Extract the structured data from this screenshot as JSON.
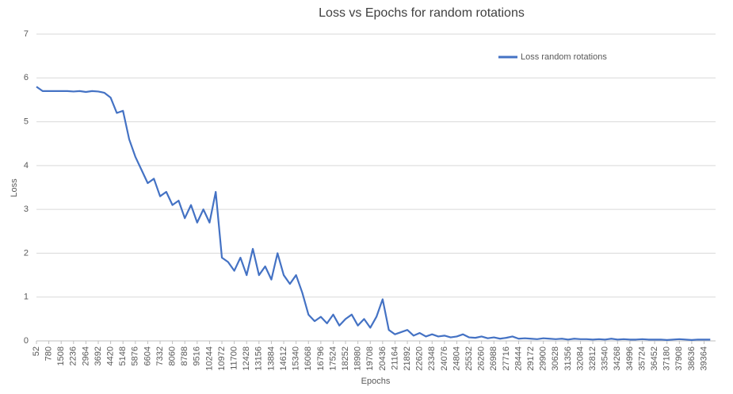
{
  "chart_data": {
    "type": "line",
    "title": "Loss vs Epochs for random rotations",
    "x_label": "Epochs",
    "y_label": "Loss",
    "x": [
      52,
      416,
      780,
      1144,
      1508,
      1872,
      2236,
      2600,
      2964,
      3328,
      3692,
      4056,
      4420,
      4784,
      5148,
      5512,
      5876,
      6240,
      6604,
      6968,
      7332,
      7696,
      8060,
      8424,
      8788,
      9152,
      9516,
      9880,
      10244,
      10608,
      10972,
      11336,
      11700,
      12064,
      12428,
      12792,
      13156,
      13520,
      13884,
      14248,
      14612,
      14976,
      15340,
      15704,
      16068,
      16432,
      16796,
      17160,
      17524,
      17888,
      18252,
      18616,
      18980,
      19344,
      19708,
      20072,
      20436,
      20800,
      21164,
      21528,
      21892,
      22256,
      22620,
      22984,
      23348,
      23712,
      24076,
      24440,
      24804,
      25168,
      25532,
      25896,
      26260,
      26624,
      26988,
      27352,
      27716,
      28080,
      28444,
      28808,
      29172,
      29536,
      29900,
      30264,
      30628,
      30992,
      31356,
      31720,
      32084,
      32448,
      32812,
      33176,
      33540,
      33904,
      34268,
      34632,
      34996,
      35360,
      35724,
      36088,
      36452,
      36816,
      37180,
      37544,
      37908,
      38272,
      38636,
      39000,
      39364,
      39728
    ],
    "series": [
      {
        "name": "Loss random rotations",
        "color": "#4472c4",
        "values": [
          5.8,
          5.7,
          5.7,
          5.7,
          5.7,
          5.7,
          5.69,
          5.7,
          5.68,
          5.7,
          5.69,
          5.66,
          5.55,
          5.2,
          5.25,
          4.6,
          4.2,
          3.9,
          3.6,
          3.7,
          3.3,
          3.4,
          3.1,
          3.2,
          2.8,
          3.1,
          2.7,
          3.0,
          2.7,
          3.4,
          1.9,
          1.8,
          1.6,
          1.9,
          1.5,
          2.1,
          1.5,
          1.7,
          1.4,
          2.0,
          1.5,
          1.3,
          1.5,
          1.1,
          0.6,
          0.45,
          0.55,
          0.4,
          0.6,
          0.35,
          0.5,
          0.6,
          0.35,
          0.5,
          0.3,
          0.55,
          0.95,
          0.25,
          0.15,
          0.2,
          0.25,
          0.12,
          0.18,
          0.1,
          0.15,
          0.1,
          0.12,
          0.08,
          0.1,
          0.15,
          0.08,
          0.07,
          0.1,
          0.06,
          0.08,
          0.05,
          0.07,
          0.1,
          0.05,
          0.06,
          0.05,
          0.04,
          0.06,
          0.05,
          0.04,
          0.05,
          0.03,
          0.05,
          0.04,
          0.04,
          0.03,
          0.04,
          0.03,
          0.05,
          0.03,
          0.04,
          0.03,
          0.03,
          0.04,
          0.03,
          0.03,
          0.03,
          0.02,
          0.03,
          0.04,
          0.03,
          0.02,
          0.03,
          0.03,
          0.03
        ]
      }
    ],
    "xlim": [
      52,
      40040
    ],
    "xticks": [
      52,
      780,
      1508,
      2236,
      2964,
      3692,
      4420,
      5148,
      5876,
      6604,
      7332,
      8060,
      8788,
      9516,
      10244,
      10972,
      11700,
      12428,
      13156,
      13884,
      14612,
      15340,
      16068,
      16796,
      17524,
      18252,
      18980,
      19708,
      20436,
      21164,
      21892,
      22620,
      23348,
      24076,
      24804,
      25532,
      26260,
      26988,
      27716,
      28444,
      29172,
      29900,
      30628,
      31356,
      32084,
      32812,
      33540,
      34268,
      34996,
      35724,
      36452,
      37180,
      37908,
      38636,
      39364
    ],
    "ylim": [
      0,
      7
    ],
    "yticks": [
      0,
      1,
      2,
      3,
      4,
      5,
      6,
      7
    ],
    "grid": true,
    "legend": "top-right"
  }
}
